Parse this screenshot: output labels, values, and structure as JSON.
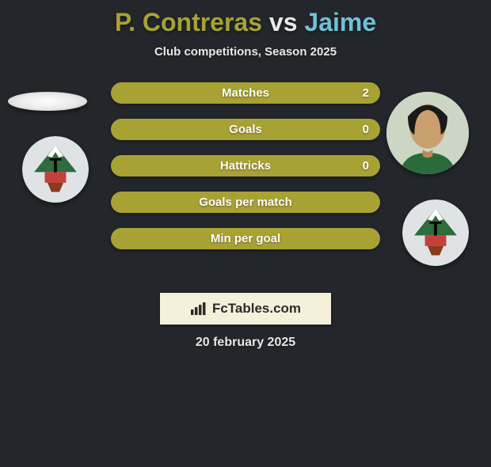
{
  "title": {
    "player1": "P. Contreras",
    "vs": " vs ",
    "player2": "Jaime",
    "player1_color": "#a8a234",
    "player2_color": "#6fc1d8"
  },
  "subtitle": "Club competitions, Season 2025",
  "bars": [
    {
      "label": "Matches",
      "value_right": "2",
      "color": "#a8a234",
      "width_pct": 100
    },
    {
      "label": "Goals",
      "value_right": "0",
      "color": "#a8a234",
      "width_pct": 100
    },
    {
      "label": "Hattricks",
      "value_right": "0",
      "color": "#a8a234",
      "width_pct": 100
    },
    {
      "label": "Goals per match",
      "value_right": "",
      "color": "#a8a234",
      "width_pct": 100
    },
    {
      "label": "Min per goal",
      "value_right": "",
      "color": "#a8a234",
      "width_pct": 100
    }
  ],
  "brand": "FcTables.com",
  "date": "20 february 2025",
  "colors": {
    "background": "#23262b",
    "bar_fill": "#a8a234",
    "brand_bg": "#f5f0da"
  },
  "club_badge": {
    "outer": "#dfe3e6",
    "mountain": "#2f6b3b",
    "snow": "#ffffff",
    "trunk": "#8a3a1e",
    "base": "#c6403a",
    "letter": "#000000"
  }
}
